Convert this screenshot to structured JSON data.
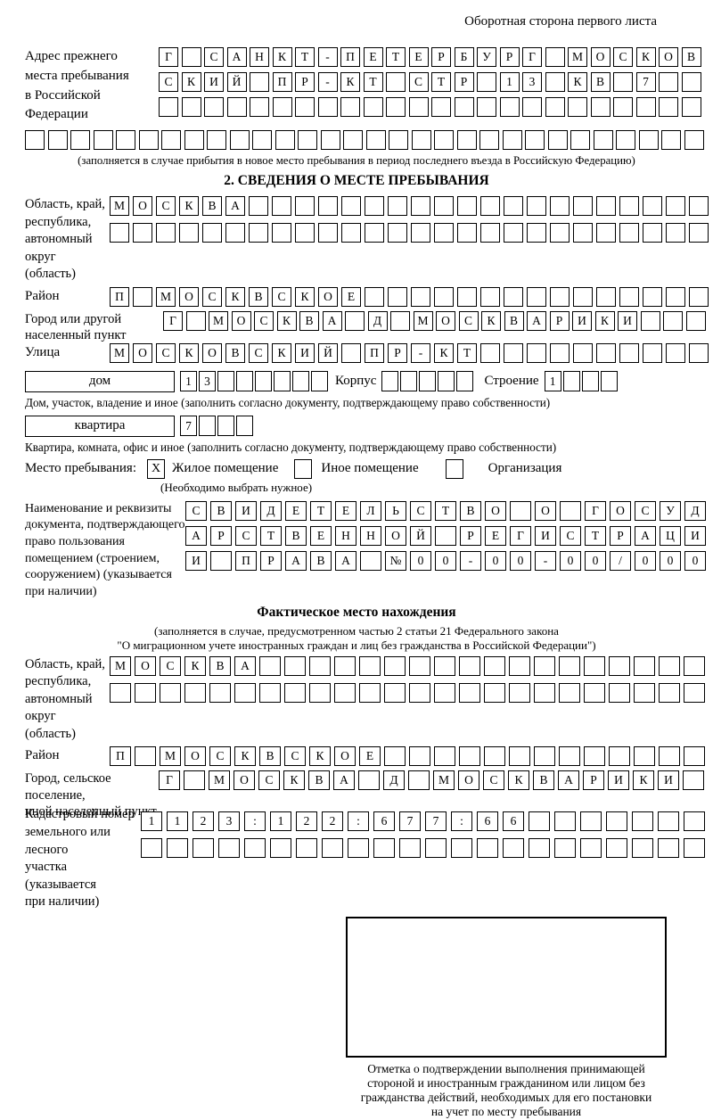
{
  "page_header": "Оборотная сторона первого листа",
  "prev_address": {
    "label": "Адрес прежнего\nместа пребывания\nв Российской\nФедерации",
    "rows": [
      {
        "count": 24,
        "chars": "Г САНКТ-ПЕТЕРБУРГ МОСКОВ"
      },
      {
        "count": 24,
        "chars": "СКИЙ ПР-КТ СТР 13 КВ 7"
      },
      {
        "count": 24,
        "chars": ""
      },
      {
        "count": 30,
        "chars": ""
      }
    ],
    "note": "(заполняется в случае прибытия в новое место пребывания в период последнего въезда в Российскую Федерацию)"
  },
  "section2": {
    "title": "2. СВЕДЕНИЯ О МЕСТЕ ПРЕБЫВАНИЯ",
    "region": {
      "label": "Область, край,\nреспублика,\nавтономный\nокруг (область)",
      "rows": [
        {
          "count": 26,
          "chars": "МОСКВА"
        },
        {
          "count": 26,
          "chars": ""
        }
      ]
    },
    "district": {
      "label": "Район",
      "row": {
        "count": 26,
        "chars": "П МОСКВСКОЕ"
      }
    },
    "city": {
      "label": "Город или другой\nнаселенный пункт",
      "row": {
        "count": 24,
        "chars": "Г МОСКВА Д МОСКВАРИКИ"
      }
    },
    "street": {
      "label": "Улица",
      "row": {
        "count": 26,
        "chars": "МОСКОВСКИЙ ПР-КТ"
      }
    },
    "house": {
      "type_label": "дом",
      "number_cells": {
        "count": 8,
        "chars": "13"
      },
      "korpus_label": "Корпус",
      "korpus_cells": {
        "count": 5,
        "chars": ""
      },
      "stroenie_label": "Строение",
      "stroenie_cells": {
        "count": 4,
        "chars": "1"
      },
      "caption": "Дом, участок, владение и иное (заполнить согласно документу, подтверждающему право собственности)"
    },
    "apartment": {
      "type_label": "квартира",
      "number_cells": {
        "count": 4,
        "chars": "7"
      },
      "caption": "Квартира, комната, офис и иное (заполнить согласно документу, подтверждающему право собственности)"
    },
    "stay_place": {
      "label": "Место пребывания:",
      "options": [
        {
          "label": "Жилое помещение",
          "mark": "X"
        },
        {
          "label": "Иное помещение",
          "mark": ""
        },
        {
          "label": "Организация",
          "mark": ""
        }
      ],
      "note": "(Необходимо выбрать нужное)"
    },
    "document": {
      "label": "Наименование и реквизиты\nдокумента, подтверждающего\nправо пользования\nпомещением (строением,\nсооружением) (указывается\nпри наличии)",
      "rows": [
        {
          "count": 21,
          "chars": "СВИДЕТЕЛЬСТВО О ГОСУД"
        },
        {
          "count": 21,
          "chars": "АРСТВЕННОЙ РЕГИСТРАЦИ"
        },
        {
          "count": 21,
          "chars": "И ПРАВА №00-00-00/000"
        }
      ]
    }
  },
  "actual_location": {
    "title": "Фактическое место нахождения",
    "note_line1": "(заполняется в случае, предусмотренном частью 2 статьи 21 Федерального закона",
    "note_line2": "\"О миграционном учете иностранных граждан и лиц без гражданства в Российской Федерации\")",
    "region": {
      "label": "Область, край,\nреспублика,\nавтономный округ\n(область)",
      "rows": [
        {
          "count": 24,
          "chars": "МОСКВА"
        },
        {
          "count": 24,
          "chars": ""
        }
      ]
    },
    "district": {
      "label": "Район",
      "row": {
        "count": 24,
        "chars": "П МОСКВСКОЕ"
      }
    },
    "city": {
      "label": "Город, сельское поселение,\nиной населенный пункт",
      "row": {
        "count": 22,
        "chars": "Г МОСКВА Д МОСКВАРИКИ"
      }
    },
    "cadastral": {
      "label": "Кадастровый номер\nземельного или лесного\nучастка (указывается\nпри наличии)",
      "rows": [
        {
          "count": 22,
          "chars": "1123:122:677:66"
        },
        {
          "count": 22,
          "chars": ""
        }
      ]
    }
  },
  "stamp": {
    "caption": "Отметка о подтверждении выполнения принимающей\nстороной и иностранным гражданином или лицом без\nгражданства действий, необходимых для его постановки\nна учет по месту пребывания"
  }
}
